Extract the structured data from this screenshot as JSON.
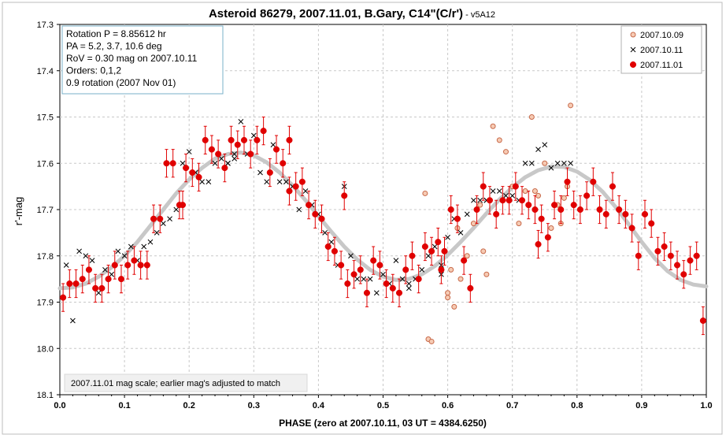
{
  "chart_data": {
    "type": "scatter",
    "title": "Asteroid 86279, 2007.11.01, B.Gary, C14\"(C/r')",
    "title_suffix": " - v5A12",
    "xlabel": "PHASE (zero at 2007.10.11, 03 UT = 4384.6250)",
    "ylabel": "r'-mag",
    "xlim": [
      0.0,
      1.0
    ],
    "ylim": [
      18.1,
      17.3
    ],
    "y_inverted": true,
    "x_ticks": [
      "0.0",
      "0.1",
      "0.2",
      "0.3",
      "0.4",
      "0.5",
      "0.6",
      "0.7",
      "0.8",
      "0.9",
      "1.0"
    ],
    "y_ticks": [
      "17.3",
      "17.4",
      "17.5",
      "17.6",
      "17.7",
      "17.8",
      "17.9",
      "18.0",
      "18.1"
    ],
    "grid": true,
    "info_box": [
      "Rotation P = 8.85612 hr",
      "PA =  5.2, 3.7, 10.6 deg",
      "RoV = 0.30 mag on 2007.10.11",
      "Orders: 0,1,2",
      " 0.9 rotation (2007 Nov 01)"
    ],
    "note": "2007.11.01 mag scale; earlier mag's adjusted to match",
    "legend_position": "top-right",
    "colors": {
      "series_2007_10_09": "#e8a07a",
      "series_2007_10_11": "#000000",
      "series_2007_11_01": "#e00000",
      "fit_curve": "#c8c8c8",
      "grid": "#c8c8c8"
    },
    "series": [
      {
        "name": "2007.10.09",
        "marker": "open-circle",
        "points": [
          [
            0.565,
            17.665
          ],
          [
            0.57,
            17.98
          ],
          [
            0.575,
            17.985
          ],
          [
            0.59,
            17.83
          ],
          [
            0.6,
            17.89
          ],
          [
            0.605,
            17.83
          ],
          [
            0.61,
            17.91
          ],
          [
            0.615,
            17.74
          ],
          [
            0.62,
            17.85
          ],
          [
            0.625,
            17.81
          ],
          [
            0.63,
            17.8
          ],
          [
            0.64,
            17.73
          ],
          [
            0.65,
            17.69
          ],
          [
            0.655,
            17.79
          ],
          [
            0.66,
            17.84
          ],
          [
            0.67,
            17.52
          ],
          [
            0.68,
            17.55
          ],
          [
            0.69,
            17.575
          ],
          [
            0.7,
            17.65
          ],
          [
            0.71,
            17.73
          ],
          [
            0.72,
            17.66
          ],
          [
            0.73,
            17.5
          ],
          [
            0.735,
            17.66
          ],
          [
            0.74,
            17.67
          ],
          [
            0.75,
            17.6
          ],
          [
            0.76,
            17.74
          ],
          [
            0.77,
            17.69
          ],
          [
            0.775,
            17.73
          ],
          [
            0.78,
            17.675
          ],
          [
            0.785,
            17.65
          ],
          [
            0.79,
            17.475
          ],
          [
            0.6,
            17.88
          ]
        ]
      },
      {
        "name": "2007.10.11",
        "marker": "x",
        "points": [
          [
            0.01,
            17.82
          ],
          [
            0.02,
            17.94
          ],
          [
            0.03,
            17.79
          ],
          [
            0.04,
            17.8
          ],
          [
            0.05,
            17.81
          ],
          [
            0.06,
            17.88
          ],
          [
            0.07,
            17.83
          ],
          [
            0.08,
            17.84
          ],
          [
            0.09,
            17.79
          ],
          [
            0.1,
            17.8
          ],
          [
            0.11,
            17.78
          ],
          [
            0.12,
            17.81
          ],
          [
            0.13,
            17.78
          ],
          [
            0.14,
            17.77
          ],
          [
            0.15,
            17.75
          ],
          [
            0.16,
            17.73
          ],
          [
            0.17,
            17.72
          ],
          [
            0.18,
            17.7
          ],
          [
            0.19,
            17.6
          ],
          [
            0.2,
            17.575
          ],
          [
            0.21,
            17.62
          ],
          [
            0.22,
            17.64
          ],
          [
            0.23,
            17.64
          ],
          [
            0.24,
            17.6
          ],
          [
            0.25,
            17.59
          ],
          [
            0.26,
            17.6
          ],
          [
            0.27,
            17.58
          ],
          [
            0.28,
            17.51
          ],
          [
            0.29,
            17.58
          ],
          [
            0.3,
            17.54
          ],
          [
            0.31,
            17.62
          ],
          [
            0.32,
            17.64
          ],
          [
            0.33,
            17.56
          ],
          [
            0.34,
            17.64
          ],
          [
            0.35,
            17.64
          ],
          [
            0.36,
            17.65
          ],
          [
            0.37,
            17.7
          ],
          [
            0.38,
            17.66
          ],
          [
            0.39,
            17.69
          ],
          [
            0.4,
            17.71
          ],
          [
            0.41,
            17.75
          ],
          [
            0.42,
            17.77
          ],
          [
            0.43,
            17.82
          ],
          [
            0.44,
            17.65
          ],
          [
            0.45,
            17.8
          ],
          [
            0.46,
            17.85
          ],
          [
            0.47,
            17.85
          ],
          [
            0.48,
            17.85
          ],
          [
            0.49,
            17.88
          ],
          [
            0.5,
            17.84
          ],
          [
            0.51,
            17.86
          ],
          [
            0.52,
            17.81
          ],
          [
            0.53,
            17.85
          ],
          [
            0.54,
            17.86
          ],
          [
            0.55,
            17.85
          ],
          [
            0.56,
            17.83
          ],
          [
            0.57,
            17.8
          ],
          [
            0.58,
            17.78
          ],
          [
            0.59,
            17.82
          ],
          [
            0.6,
            17.76
          ],
          [
            0.61,
            17.72
          ],
          [
            0.62,
            17.75
          ],
          [
            0.63,
            17.71
          ],
          [
            0.64,
            17.68
          ],
          [
            0.65,
            17.68
          ],
          [
            0.66,
            17.68
          ],
          [
            0.67,
            17.66
          ],
          [
            0.68,
            17.66
          ],
          [
            0.69,
            17.67
          ],
          [
            0.7,
            17.67
          ],
          [
            0.71,
            17.68
          ],
          [
            0.72,
            17.6
          ],
          [
            0.73,
            17.6
          ],
          [
            0.74,
            17.57
          ],
          [
            0.75,
            17.56
          ],
          [
            0.76,
            17.61
          ],
          [
            0.77,
            17.6
          ],
          [
            0.78,
            17.6
          ],
          [
            0.79,
            17.6
          ],
          [
            0.66,
            17.68
          ],
          [
            0.26,
            17.6
          ],
          [
            0.27,
            17.59
          ],
          [
            0.54,
            17.87
          ],
          [
            0.59,
            17.84
          ]
        ]
      },
      {
        "name": "2007.11.01",
        "marker": "filled-circle",
        "points": [
          [
            0.005,
            17.89
          ],
          [
            0.015,
            17.86
          ],
          [
            0.025,
            17.86
          ],
          [
            0.035,
            17.85
          ],
          [
            0.045,
            17.83
          ],
          [
            0.055,
            17.87
          ],
          [
            0.065,
            17.87
          ],
          [
            0.075,
            17.85
          ],
          [
            0.085,
            17.82
          ],
          [
            0.095,
            17.85
          ],
          [
            0.105,
            17.82
          ],
          [
            0.115,
            17.81
          ],
          [
            0.125,
            17.82
          ],
          [
            0.135,
            17.82
          ],
          [
            0.145,
            17.72
          ],
          [
            0.155,
            17.72
          ],
          [
            0.165,
            17.6
          ],
          [
            0.175,
            17.6
          ],
          [
            0.185,
            17.69
          ],
          [
            0.195,
            17.61
          ],
          [
            0.205,
            17.62
          ],
          [
            0.215,
            17.63
          ],
          [
            0.225,
            17.55
          ],
          [
            0.235,
            17.57
          ],
          [
            0.245,
            17.58
          ],
          [
            0.255,
            17.61
          ],
          [
            0.265,
            17.55
          ],
          [
            0.275,
            17.56
          ],
          [
            0.285,
            17.55
          ],
          [
            0.295,
            17.58
          ],
          [
            0.305,
            17.55
          ],
          [
            0.315,
            17.53
          ],
          [
            0.325,
            17.62
          ],
          [
            0.335,
            17.57
          ],
          [
            0.345,
            17.6
          ],
          [
            0.355,
            17.55
          ],
          [
            0.365,
            17.65
          ],
          [
            0.375,
            17.64
          ],
          [
            0.385,
            17.69
          ],
          [
            0.395,
            17.71
          ],
          [
            0.405,
            17.72
          ],
          [
            0.415,
            17.78
          ],
          [
            0.425,
            17.79
          ],
          [
            0.435,
            17.82
          ],
          [
            0.445,
            17.86
          ],
          [
            0.455,
            17.84
          ],
          [
            0.465,
            17.83
          ],
          [
            0.475,
            17.88
          ],
          [
            0.485,
            17.81
          ],
          [
            0.495,
            17.82
          ],
          [
            0.505,
            17.86
          ],
          [
            0.515,
            17.87
          ],
          [
            0.525,
            17.88
          ],
          [
            0.535,
            17.83
          ],
          [
            0.545,
            17.8
          ],
          [
            0.555,
            17.85
          ],
          [
            0.565,
            17.78
          ],
          [
            0.575,
            17.79
          ],
          [
            0.585,
            17.77
          ],
          [
            0.595,
            17.79
          ],
          [
            0.605,
            17.7
          ],
          [
            0.615,
            17.72
          ],
          [
            0.625,
            17.81
          ],
          [
            0.635,
            17.87
          ],
          [
            0.645,
            17.7
          ],
          [
            0.655,
            17.65
          ],
          [
            0.665,
            17.68
          ],
          [
            0.675,
            17.71
          ],
          [
            0.685,
            17.68
          ],
          [
            0.695,
            17.68
          ],
          [
            0.705,
            17.65
          ],
          [
            0.715,
            17.68
          ],
          [
            0.725,
            17.69
          ],
          [
            0.735,
            17.7
          ],
          [
            0.745,
            17.72
          ],
          [
            0.755,
            17.76
          ],
          [
            0.765,
            17.69
          ],
          [
            0.775,
            17.7
          ],
          [
            0.785,
            17.64
          ],
          [
            0.795,
            17.69
          ],
          [
            0.805,
            17.7
          ],
          [
            0.815,
            17.67
          ],
          [
            0.825,
            17.64
          ],
          [
            0.835,
            17.7
          ],
          [
            0.845,
            17.71
          ],
          [
            0.855,
            17.65
          ],
          [
            0.865,
            17.7
          ],
          [
            0.875,
            17.71
          ],
          [
            0.885,
            17.74
          ],
          [
            0.895,
            17.8
          ],
          [
            0.905,
            17.71
          ],
          [
            0.915,
            17.73
          ],
          [
            0.925,
            17.79
          ],
          [
            0.935,
            17.78
          ],
          [
            0.945,
            17.8
          ],
          [
            0.955,
            17.82
          ],
          [
            0.965,
            17.84
          ],
          [
            0.975,
            17.81
          ],
          [
            0.985,
            17.8
          ],
          [
            0.995,
            17.94
          ],
          [
            0.355,
            17.66
          ],
          [
            0.44,
            17.67
          ],
          [
            0.59,
            17.83
          ],
          [
            0.74,
            17.775
          ],
          [
            0.19,
            17.69
          ]
        ]
      }
    ],
    "fit": {
      "name": "fit",
      "points": [
        [
          0.0,
          17.87
        ],
        [
          0.02,
          17.868
        ],
        [
          0.04,
          17.86
        ],
        [
          0.06,
          17.845
        ],
        [
          0.08,
          17.825
        ],
        [
          0.1,
          17.8
        ],
        [
          0.12,
          17.77
        ],
        [
          0.14,
          17.735
        ],
        [
          0.16,
          17.7
        ],
        [
          0.18,
          17.665
        ],
        [
          0.2,
          17.635
        ],
        [
          0.22,
          17.61
        ],
        [
          0.24,
          17.59
        ],
        [
          0.26,
          17.58
        ],
        [
          0.28,
          17.577
        ],
        [
          0.3,
          17.583
        ],
        [
          0.32,
          17.598
        ],
        [
          0.34,
          17.62
        ],
        [
          0.36,
          17.648
        ],
        [
          0.38,
          17.68
        ],
        [
          0.4,
          17.714
        ],
        [
          0.42,
          17.748
        ],
        [
          0.44,
          17.78
        ],
        [
          0.46,
          17.808
        ],
        [
          0.48,
          17.83
        ],
        [
          0.5,
          17.845
        ],
        [
          0.52,
          17.852
        ],
        [
          0.54,
          17.85
        ],
        [
          0.56,
          17.84
        ],
        [
          0.58,
          17.822
        ],
        [
          0.6,
          17.798
        ],
        [
          0.62,
          17.77
        ],
        [
          0.64,
          17.74
        ],
        [
          0.66,
          17.708
        ],
        [
          0.68,
          17.678
        ],
        [
          0.7,
          17.652
        ],
        [
          0.72,
          17.63
        ],
        [
          0.74,
          17.615
        ],
        [
          0.76,
          17.607
        ],
        [
          0.78,
          17.608
        ],
        [
          0.8,
          17.618
        ],
        [
          0.82,
          17.636
        ],
        [
          0.84,
          17.662
        ],
        [
          0.86,
          17.695
        ],
        [
          0.88,
          17.732
        ],
        [
          0.9,
          17.77
        ],
        [
          0.92,
          17.805
        ],
        [
          0.94,
          17.833
        ],
        [
          0.96,
          17.852
        ],
        [
          0.98,
          17.862
        ],
        [
          1.0,
          17.866
        ]
      ]
    }
  }
}
